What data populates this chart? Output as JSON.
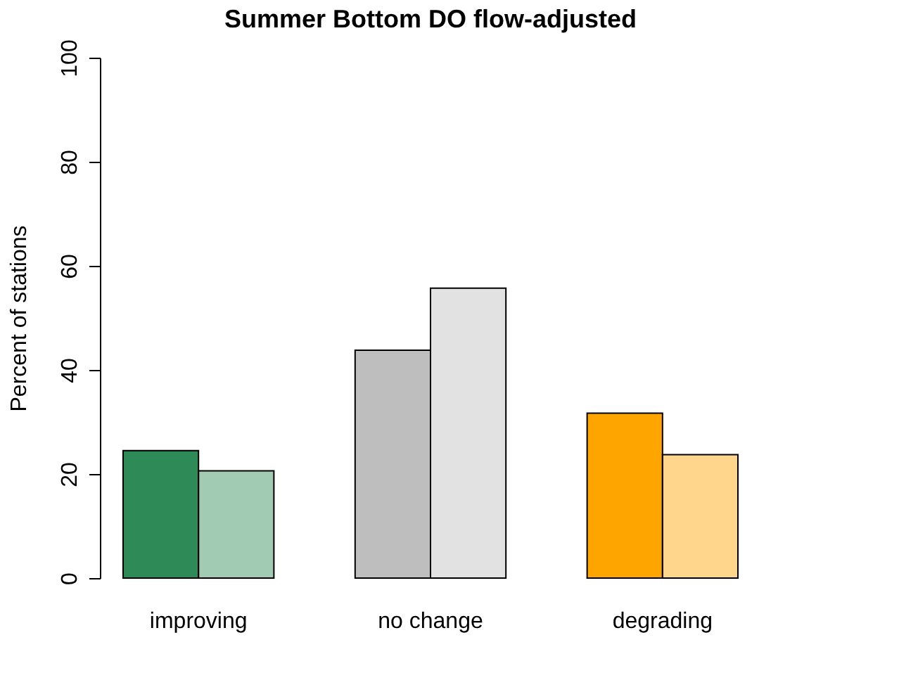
{
  "chart_data": {
    "type": "bar",
    "title": "Summer Bottom DO flow-adjusted",
    "ylabel": "Percent of stations",
    "categories": [
      "improving",
      "no change",
      "degrading"
    ],
    "series": [
      {
        "colors": [
          "#2e8b57",
          "#bebebe",
          "#ffa500"
        ],
        "values": [
          24.5,
          43.8,
          31.7
        ]
      },
      {
        "colors": [
          "#2e8b57",
          "#bebebe",
          "#ffa500"
        ],
        "values": [
          20.6,
          55.7,
          23.7
        ]
      }
    ],
    "ylim": [
      0,
      100
    ],
    "yticks": [
      0,
      20,
      40,
      60,
      80,
      100
    ],
    "grid": false
  }
}
